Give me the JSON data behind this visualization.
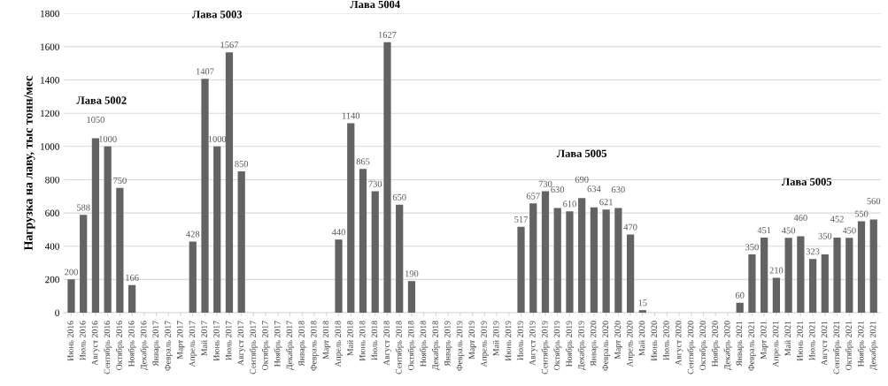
{
  "chart_data": {
    "type": "bar",
    "ylabel": "Нагрузка на лаву, тыс тонн/мес",
    "categories": [
      "Июнь 2016",
      "Июль 2016",
      "Август 2016",
      "Сентябрь 2016",
      "Октябрь 2016",
      "Ноябрь 2016",
      "Декабрь 2016",
      "Январь 2017",
      "Февраль 2017",
      "Март 2017",
      "Апрель 2017",
      "Май 2017",
      "Июнь 2017",
      "Июль 2017",
      "Август 2017",
      "Сентябрь 2017",
      "Октябрь 2017",
      "Ноябрь 2017",
      "Декабрь 2017",
      "Январь 2018",
      "Февраль 2018",
      "Март 2018",
      "Апрель 2018",
      "Май 2018",
      "Июнь 2018",
      "Июль 2018",
      "Август 2018",
      "Сентябрь 2018",
      "Октябрь 2018",
      "Ноябрь 2018",
      "Декабрь 2018",
      "Январь 2019",
      "Февраль 2019",
      "Март 2019",
      "Апрель 2019",
      "Май 2019",
      "Июнь 2019",
      "Июль 2019",
      "Август 2019",
      "Сентябрь 2019",
      "Октябрь 2019",
      "Ноябрь 2019",
      "Декабрь 2019",
      "Январь 2020",
      "Февраль 2020",
      "Март 2020",
      "Апрель 2020",
      "Май 2020",
      "Июнь 2020",
      "Июль 2020",
      "Август 2020",
      "Сентябрь 2020",
      "Октябрь 2020",
      "Ноябрь 2020",
      "Декабрь 2020",
      "Январь 2021",
      "Февраль 2021",
      "Март 2021",
      "Апрель 2021",
      "Май 2021",
      "Июнь 2021",
      "Июль 2021",
      "Август 2021",
      "Сентябрь 2021",
      "Октябрь 2021",
      "Ноябрь 2021",
      "Декабрь 2021"
    ],
    "values": [
      200,
      588,
      1050,
      1000,
      750,
      166,
      0,
      0,
      0,
      0,
      428,
      1407,
      1000,
      1567,
      850,
      0,
      0,
      0,
      0,
      0,
      0,
      0,
      440,
      1140,
      865,
      730,
      1627,
      650,
      190,
      0,
      0,
      0,
      0,
      0,
      0,
      0,
      0,
      517,
      657,
      730,
      630,
      610,
      690,
      634,
      621,
      630,
      470,
      15,
      0,
      0,
      0,
      0,
      0,
      0,
      0,
      60,
      350,
      451,
      210,
      450,
      460,
      323,
      350,
      452,
      450,
      550,
      560
    ],
    "value_labels": [
      "200",
      "588",
      "1050",
      "1000",
      "750",
      "166",
      null,
      null,
      null,
      null,
      "428",
      "1407",
      "1000",
      "1567",
      "850",
      null,
      null,
      null,
      null,
      null,
      null,
      null,
      "440",
      "1140",
      "865",
      "730",
      "1627",
      "650",
      "190",
      null,
      null,
      null,
      null,
      null,
      null,
      null,
      null,
      "517",
      "657",
      "730",
      "630",
      "610",
      "690",
      "634",
      "621",
      "630",
      "470",
      "15",
      null,
      null,
      null,
      null,
      null,
      null,
      null,
      "60",
      "350",
      "451",
      "210",
      "450",
      "460",
      "323",
      "350",
      "452",
      "450",
      "550",
      "560"
    ],
    "color": "#636363",
    "ylim": [
      0,
      1800
    ],
    "yticks": [
      0,
      200,
      400,
      600,
      800,
      1000,
      1200,
      1400,
      1600,
      1800
    ],
    "grid": "y",
    "annotations": [
      "Лава 5002",
      "Лава 5003",
      "Лава 5004",
      "Лава 5005",
      "Лава 5005"
    ]
  }
}
